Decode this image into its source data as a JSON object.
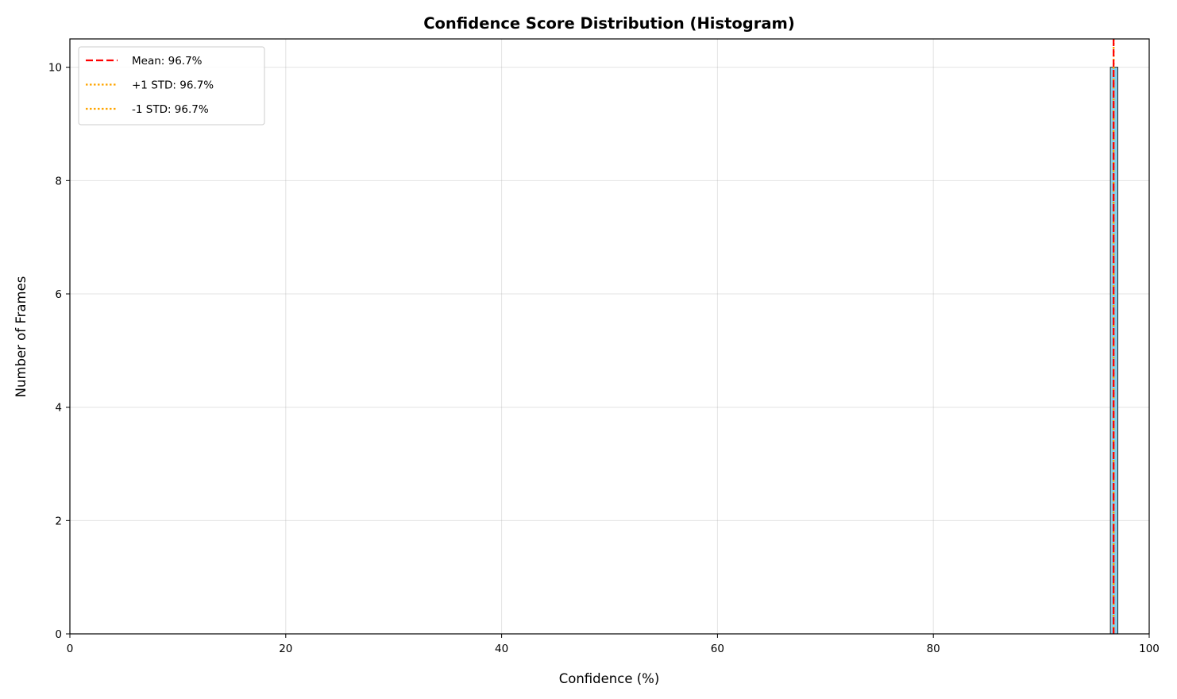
{
  "chart_data": {
    "type": "bar",
    "title": "Confidence Score Distribution (Histogram)",
    "xlabel": "Confidence (%)",
    "ylabel": "Number of Frames",
    "xlim": [
      0,
      100
    ],
    "ylim": [
      0,
      10.5
    ],
    "xticks": [
      0,
      20,
      40,
      60,
      80,
      100
    ],
    "yticks": [
      0,
      2,
      4,
      6,
      8,
      10
    ],
    "grid": true,
    "legend_position": "top-left",
    "bins": [
      {
        "x0": 96.4,
        "x1": 97.1,
        "count": 10
      }
    ],
    "reference_lines": [
      {
        "label": "Mean: 96.7%",
        "value": 96.7,
        "style": "dashed",
        "color": "#ff0000"
      },
      {
        "label": "+1 STD: 96.7%",
        "value": 96.7,
        "style": "dotted",
        "color": "#ffa500"
      },
      {
        "label": "-1 STD: 96.7%",
        "value": 96.7,
        "style": "dotted",
        "color": "#ffa500"
      }
    ],
    "colors": {
      "bar_fill": "#87ceeb",
      "bar_edge": "#000000"
    }
  }
}
